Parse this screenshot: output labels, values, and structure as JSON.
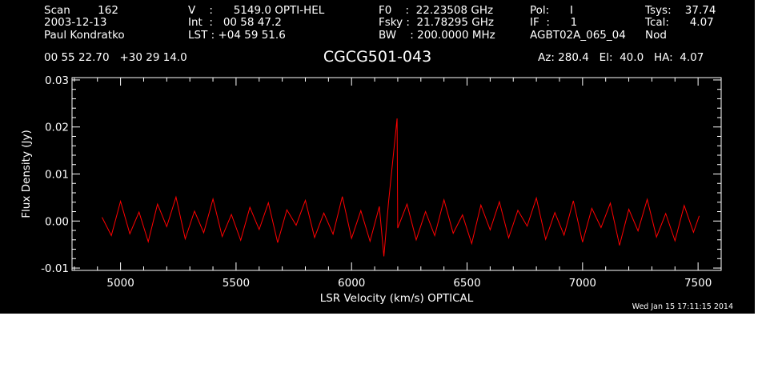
{
  "header": {
    "col1": [
      "Scan        162",
      "2003-12-13",
      "Paul Kondratko",
      "00 55 22.70   +30 29 14.0"
    ],
    "col2": [
      "V    :      5149.0 OPTI-HEL",
      "Int  :   00 58 47.2",
      "LST : +04 59 51.6"
    ],
    "col3": [
      "F0    :  22.23508 GHz",
      "Fsky :  21.78295 GHz",
      "BW    : 200.0000 MHz"
    ],
    "col4": [
      "Pol:      I",
      "IF  :      1",
      "AGBT02A_065_04"
    ],
    "col5": [
      "Tsys:    37.74",
      "Tcal:      4.07",
      "Nod"
    ],
    "pointing": "Az: 280.4   El:  40.0   HA:  4.07"
  },
  "colors": {
    "background": "#000000",
    "axes": "#ffffff",
    "trace": "#ff0000"
  },
  "timestamp": "Wed Jan 15 17:11:15 2014",
  "chart_data": {
    "type": "line",
    "title": "CGCG501-043",
    "xlabel": "LSR Velocity (km/s) OPTICAL",
    "ylabel": "Flux Density (Jy)",
    "xlim": [
      4790,
      7600
    ],
    "ylim": [
      -0.0105,
      0.0305
    ],
    "xticks": [
      5000,
      5500,
      6000,
      6500,
      7000,
      7500
    ],
    "xtick_labels": [
      "5000",
      "5500",
      "6000",
      "6500",
      "7000",
      "7500"
    ],
    "yticks": [
      -0.01,
      0.0,
      0.01,
      0.02,
      0.03
    ],
    "ytick_labels": [
      "-0.01",
      "0.00",
      "0.01",
      "0.02",
      "0.03"
    ],
    "grid": false,
    "series": [
      {
        "color": "#ff0000",
        "x": [
          4920,
          4960,
          5000,
          5040,
          5080,
          5120,
          5160,
          5200,
          5240,
          5280,
          5320,
          5360,
          5400,
          5440,
          5480,
          5520,
          5560,
          5600,
          5640,
          5680,
          5720,
          5760,
          5800,
          5840,
          5880,
          5920,
          5960,
          6000,
          6040,
          6080,
          6120,
          6140,
          6160,
          6197,
          6200,
          6240,
          6280,
          6320,
          6360,
          6400,
          6440,
          6480,
          6520,
          6560,
          6600,
          6640,
          6680,
          6720,
          6760,
          6800,
          6840,
          6880,
          6920,
          6960,
          7000,
          7040,
          7080,
          7120,
          7160,
          7200,
          7240,
          7280,
          7320,
          7360,
          7400,
          7440,
          7480,
          7505
        ],
        "y": [
          0.0008,
          -0.0031,
          0.0042,
          -0.0027,
          0.0019,
          -0.0044,
          0.0036,
          -0.0012,
          0.0051,
          -0.0038,
          0.0021,
          -0.0025,
          0.0047,
          -0.0033,
          0.0014,
          -0.0041,
          0.0029,
          -0.0018,
          0.0039,
          -0.0046,
          0.0024,
          -0.0009,
          0.0044,
          -0.0035,
          0.0017,
          -0.0028,
          0.0052,
          -0.0037,
          0.0022,
          -0.0043,
          0.0031,
          -0.0075,
          0.004,
          0.0218,
          -0.0015,
          0.0036,
          -0.004,
          0.002,
          -0.0031,
          0.0045,
          -0.0026,
          0.0013,
          -0.0048,
          0.0034,
          -0.0019,
          0.0041,
          -0.0036,
          0.0023,
          -0.0011,
          0.0049,
          -0.0039,
          0.0018,
          -0.003,
          0.0043,
          -0.0045,
          0.0027,
          -0.0014,
          0.0038,
          -0.0052,
          0.0025,
          -0.0021,
          0.0046,
          -0.0034,
          0.0016,
          -0.0042,
          0.0033,
          -0.0024,
          0.0011
        ]
      }
    ]
  }
}
